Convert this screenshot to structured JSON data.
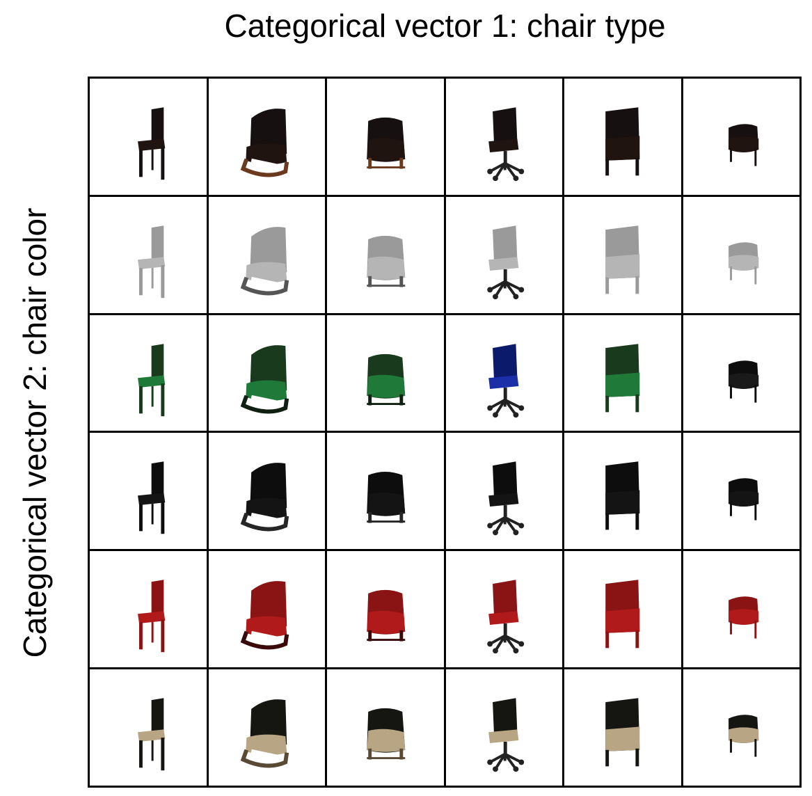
{
  "header": {
    "title": "Categorical vector 1: chair type"
  },
  "sidebar": {
    "title": "Categorical vector 2: chair color"
  },
  "grid": {
    "columns": [
      "simple-chair",
      "armchair",
      "tub-chair",
      "office-chair",
      "tall-back-chair",
      "small-stool-chair"
    ],
    "rows": [
      {
        "color_name": "black-brown",
        "fill": "#171010",
        "seat": "#1f1410",
        "accent": "#6b3a1e"
      },
      {
        "color_name": "gray",
        "fill": "#9a9a9a",
        "seat": "#b5b5b5",
        "accent": "#555555"
      },
      {
        "color_name": "green",
        "fill": "#1a3a1e",
        "seat": "#1f7a3a",
        "accent": "#0f1f12"
      },
      {
        "color_name": "black",
        "fill": "#0d0d0d",
        "seat": "#141414",
        "accent": "#262626"
      },
      {
        "color_name": "red",
        "fill": "#8a1414",
        "seat": "#b01a1a",
        "accent": "#3a0a0a"
      },
      {
        "color_name": "tan-black",
        "fill": "#151512",
        "seat": "#b8a583",
        "accent": "#5a4a35"
      }
    ],
    "special": {
      "2-3": {
        "fill": "#0c1a6b",
        "seat": "#1a2fa8"
      },
      "2-5": {
        "fill": "#0d0d0d",
        "seat": "#1a1a1a"
      }
    }
  }
}
